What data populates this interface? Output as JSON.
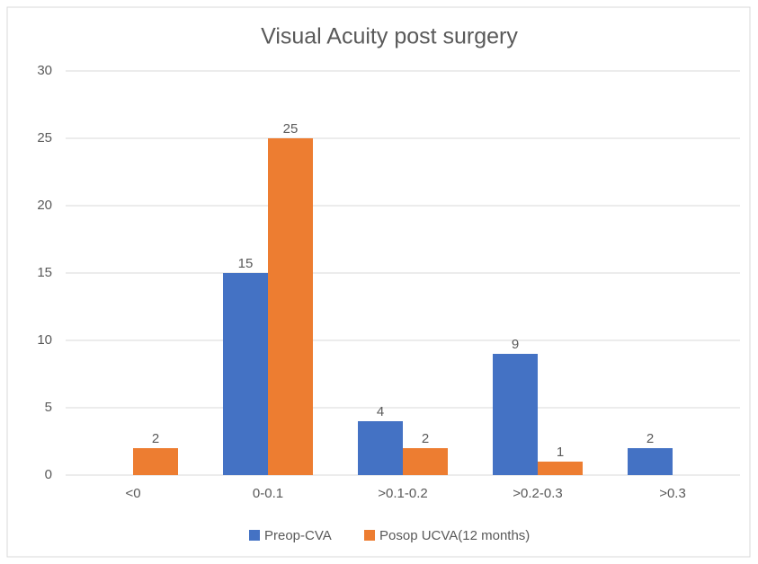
{
  "chart_data": {
    "type": "bar",
    "title": "Visual Acuity post surgery",
    "categories": [
      "<0",
      "0-0.1",
      ">0.1-0.2",
      ">0.2-0.3",
      ">0.3"
    ],
    "series": [
      {
        "name": "Preop-CVA",
        "color": "#4472c4",
        "values": [
          null,
          15,
          4,
          9,
          2
        ]
      },
      {
        "name": "Posop UCVA(12 months)",
        "color": "#ed7d31",
        "values": [
          2,
          25,
          2,
          1,
          null
        ]
      }
    ],
    "ylim": [
      0,
      30
    ],
    "yticks": [
      0,
      5,
      10,
      15,
      20,
      25,
      30
    ],
    "grid": true,
    "legend": "bottom"
  }
}
